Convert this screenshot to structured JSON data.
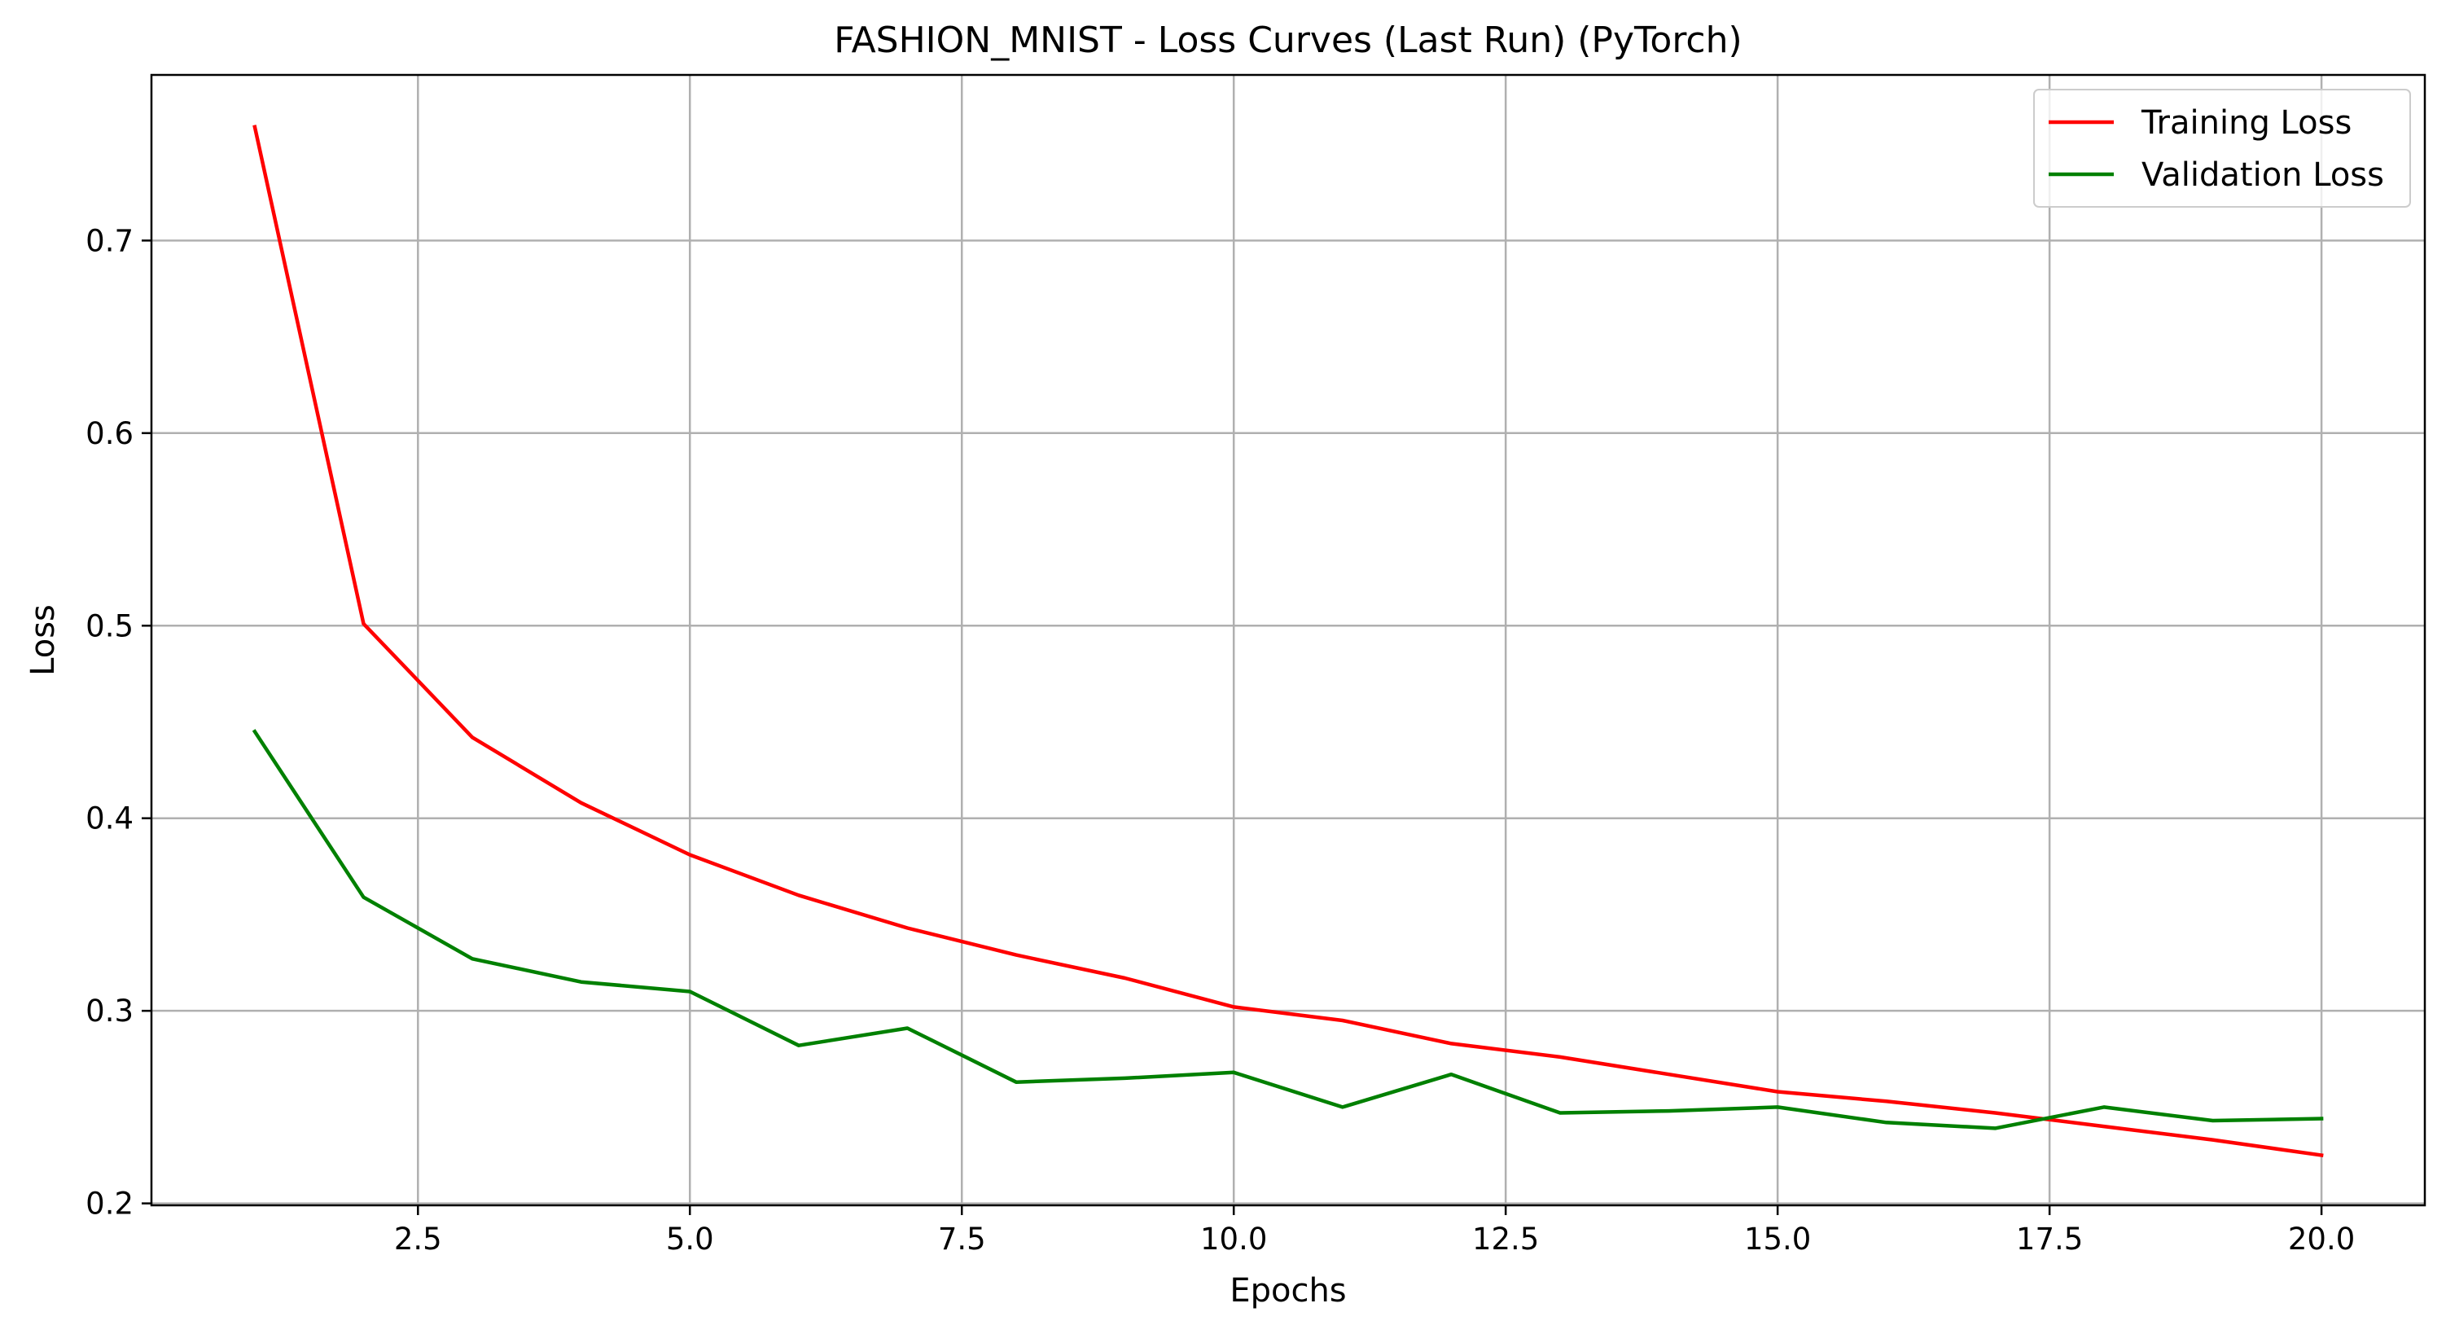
{
  "chart_data": {
    "type": "line",
    "title": "FASHION_MNIST - Loss Curves (Last Run) (PyTorch)",
    "xlabel": "Epochs",
    "ylabel": "Loss",
    "xlim": [
      0.05,
      20.95
    ],
    "ylim": [
      0.199,
      0.786
    ],
    "xticks": [
      2.5,
      5.0,
      7.5,
      10.0,
      12.5,
      15.0,
      17.5,
      20.0
    ],
    "xtick_labels": [
      "2.5",
      "5.0",
      "7.5",
      "10.0",
      "12.5",
      "15.0",
      "17.5",
      "20.0"
    ],
    "yticks": [
      0.2,
      0.3,
      0.4,
      0.5,
      0.6,
      0.7
    ],
    "ytick_labels": [
      "0.2",
      "0.3",
      "0.4",
      "0.5",
      "0.6",
      "0.7"
    ],
    "grid": true,
    "legend_position": "top-right",
    "x": [
      1,
      2,
      3,
      4,
      5,
      6,
      7,
      8,
      9,
      10,
      11,
      12,
      13,
      14,
      15,
      16,
      17,
      18,
      19,
      20
    ],
    "series": [
      {
        "name": "Training Loss",
        "color": "#ff0000",
        "values": [
          0.759,
          0.501,
          0.442,
          0.408,
          0.381,
          0.36,
          0.343,
          0.329,
          0.317,
          0.302,
          0.295,
          0.283,
          0.276,
          0.267,
          0.258,
          0.253,
          0.247,
          0.24,
          0.233,
          0.225
        ]
      },
      {
        "name": "Validation Loss",
        "color": "#008000",
        "values": [
          0.445,
          0.359,
          0.327,
          0.315,
          0.31,
          0.282,
          0.291,
          0.263,
          0.265,
          0.268,
          0.25,
          0.267,
          0.247,
          0.248,
          0.25,
          0.242,
          0.239,
          0.25,
          0.243,
          0.244
        ]
      }
    ]
  }
}
